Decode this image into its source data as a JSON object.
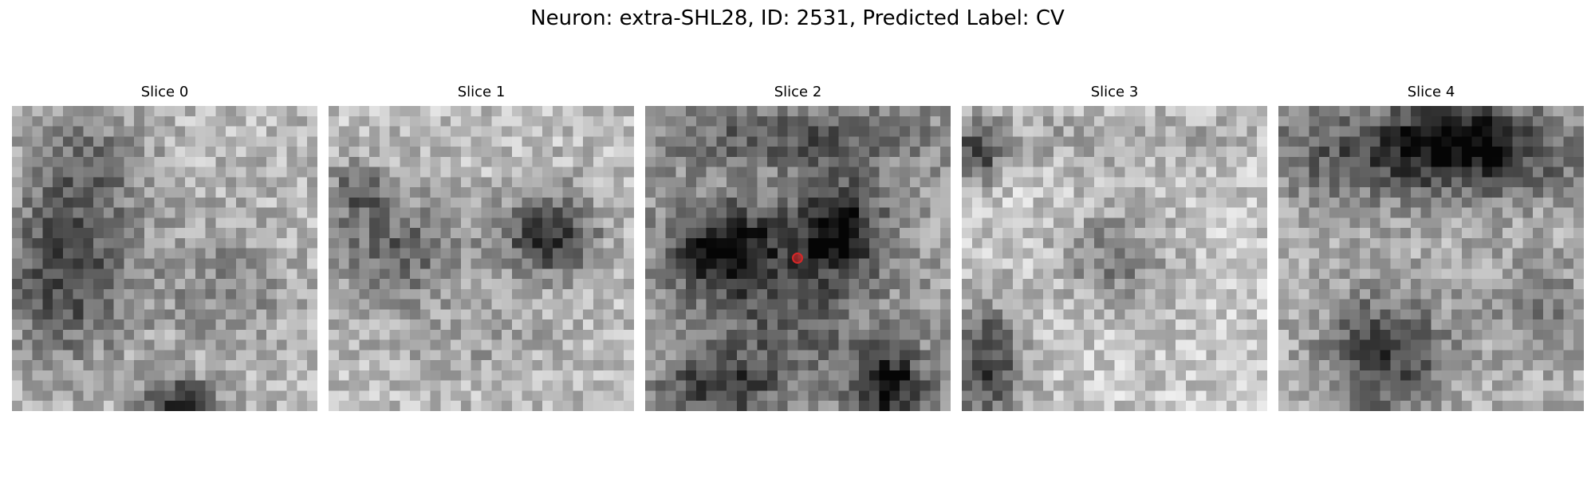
{
  "figure": {
    "title": "Neuron: extra-SHL28, ID: 2531, Predicted Label: CV"
  },
  "slices": [
    {
      "label": "Slice 0",
      "has_marker": false,
      "blobs": [
        [
          0.18,
          0.55,
          0.22,
          0.28,
          -0.45
        ],
        [
          0.25,
          0.2,
          0.2,
          0.18,
          -0.25
        ],
        [
          0.55,
          0.98,
          0.12,
          0.08,
          -0.6
        ],
        [
          0.7,
          0.6,
          0.2,
          0.2,
          -0.2
        ]
      ],
      "base": 0.72
    },
    {
      "label": "Slice 1",
      "has_marker": false,
      "blobs": [
        [
          0.23,
          0.48,
          0.22,
          0.18,
          -0.35
        ],
        [
          0.72,
          0.42,
          0.16,
          0.14,
          -0.55
        ],
        [
          0.1,
          0.28,
          0.12,
          0.1,
          -0.3
        ],
        [
          0.5,
          0.78,
          0.3,
          0.12,
          -0.1
        ]
      ],
      "base": 0.74
    },
    {
      "label": "Slice 2",
      "has_marker": true,
      "marker_color": "#d62728",
      "blobs": [
        [
          0.27,
          0.46,
          0.18,
          0.14,
          -0.6
        ],
        [
          0.63,
          0.4,
          0.14,
          0.16,
          -0.6
        ],
        [
          0.5,
          0.1,
          0.45,
          0.1,
          -0.3
        ],
        [
          0.8,
          0.92,
          0.12,
          0.12,
          -0.55
        ],
        [
          0.25,
          0.92,
          0.18,
          0.1,
          -0.4
        ],
        [
          0.45,
          0.7,
          0.3,
          0.2,
          -0.25
        ]
      ],
      "base": 0.62
    },
    {
      "label": "Slice 3",
      "has_marker": false,
      "blobs": [
        [
          0.5,
          0.5,
          0.18,
          0.16,
          -0.28
        ],
        [
          0.08,
          0.85,
          0.12,
          0.2,
          -0.55
        ],
        [
          0.05,
          0.15,
          0.08,
          0.1,
          -0.5
        ],
        [
          0.5,
          0.1,
          0.5,
          0.1,
          -0.15
        ]
      ],
      "base": 0.78
    },
    {
      "label": "Slice 4",
      "has_marker": false,
      "blobs": [
        [
          0.5,
          0.15,
          0.55,
          0.16,
          -0.5
        ],
        [
          0.35,
          0.82,
          0.2,
          0.22,
          -0.45
        ],
        [
          0.6,
          0.1,
          0.2,
          0.12,
          -0.3
        ],
        [
          0.85,
          0.65,
          0.18,
          0.15,
          -0.2
        ]
      ],
      "base": 0.7
    }
  ]
}
